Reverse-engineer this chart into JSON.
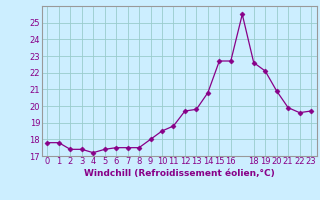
{
  "x": [
    0,
    1,
    2,
    3,
    4,
    5,
    6,
    7,
    8,
    9,
    10,
    11,
    12,
    13,
    14,
    15,
    16,
    17,
    18,
    19,
    20,
    21,
    22,
    23
  ],
  "y": [
    17.8,
    17.8,
    17.4,
    17.4,
    17.2,
    17.4,
    17.5,
    17.5,
    17.5,
    18.0,
    18.5,
    18.8,
    19.7,
    19.8,
    20.8,
    22.7,
    22.7,
    25.5,
    22.6,
    22.1,
    20.9,
    19.9,
    19.6,
    19.7
  ],
  "line_color": "#880088",
  "marker": "D",
  "marker_size": 2.5,
  "bg_color": "#cceeff",
  "grid_color": "#99cccc",
  "tick_color": "#880088",
  "xlabel": "Windchill (Refroidissement éolien,°C)",
  "xlim": [
    -0.5,
    23.5
  ],
  "ylim": [
    17.0,
    26.0
  ],
  "yticks": [
    17,
    18,
    19,
    20,
    21,
    22,
    23,
    24,
    25
  ],
  "xticks": [
    0,
    1,
    2,
    3,
    4,
    5,
    6,
    7,
    8,
    9,
    10,
    11,
    12,
    13,
    14,
    15,
    16,
    18,
    19,
    20,
    21,
    22,
    23
  ],
  "xtick_labels": [
    "0",
    "1",
    "2",
    "3",
    "4",
    "5",
    "6",
    "7",
    "8",
    "9",
    "10",
    "11",
    "12",
    "13",
    "14",
    "15",
    "16",
    "18",
    "19",
    "20",
    "21",
    "22",
    "23"
  ],
  "label_fontsize": 6.5,
  "tick_fontsize": 6.0
}
